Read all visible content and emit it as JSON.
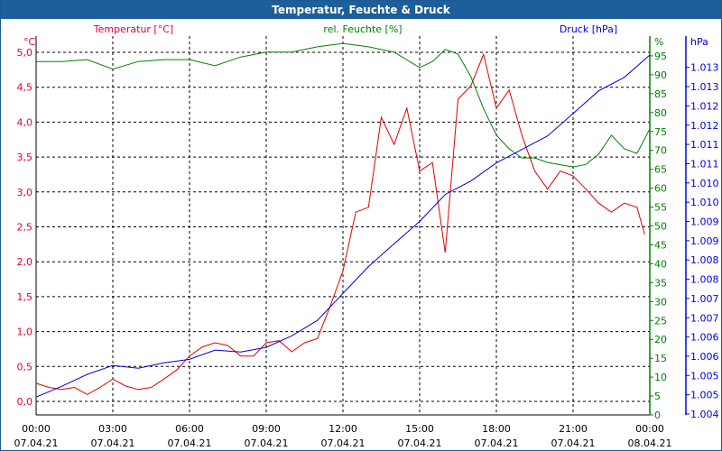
{
  "window": {
    "title": "Temperatur, Feuchte & Druck"
  },
  "chart_data": {
    "type": "line",
    "title": "Temperatur, Feuchte & Druck",
    "x_hours": [
      0,
      1,
      2,
      3,
      4,
      5,
      6,
      7,
      8,
      9,
      10,
      11,
      12,
      13,
      14,
      15,
      16,
      17,
      18,
      19,
      20,
      21,
      22,
      23,
      24
    ],
    "x_ticks": [
      {
        "h": 0,
        "time": "00:00",
        "date": "07.04.21"
      },
      {
        "h": 3,
        "time": "03:00",
        "date": "07.04.21"
      },
      {
        "h": 6,
        "time": "06:00",
        "date": "07.04.21"
      },
      {
        "h": 9,
        "time": "09:00",
        "date": "07.04.21"
      },
      {
        "h": 12,
        "time": "12:00",
        "date": "07.04.21"
      },
      {
        "h": 15,
        "time": "15:00",
        "date": "07.04.21"
      },
      {
        "h": 18,
        "time": "18:00",
        "date": "07.04.21"
      },
      {
        "h": 21,
        "time": "21:00",
        "date": "07.04.21"
      },
      {
        "h": 24,
        "time": "00:00",
        "date": "08.04.21"
      }
    ],
    "axes": {
      "temperature": {
        "label": "Temperatur [°C]",
        "unit": "°C",
        "color": "#e00030",
        "ylim": [
          -0.19,
          5.0
        ],
        "ticks": [
          "0,0",
          "0,5",
          "1,0",
          "1,5",
          "2,0",
          "2,5",
          "3,0",
          "3,5",
          "4,0",
          "4,5",
          "5,0"
        ],
        "tick_values": [
          0,
          0.5,
          1,
          1.5,
          2,
          2.5,
          3,
          3.5,
          4,
          4.5,
          5
        ]
      },
      "humidity": {
        "label": "rel. Feuchte [%]",
        "unit": "%",
        "color": "#008000",
        "ylim": [
          0,
          95
        ],
        "ticks": [
          "0",
          "5",
          "10",
          "15",
          "20",
          "25",
          "30",
          "35",
          "40",
          "45",
          "50",
          "55",
          "60",
          "65",
          "70",
          "75",
          "80",
          "85",
          "90",
          "95"
        ]
      },
      "pressure": {
        "label": "Druck [hPa]",
        "unit": "hPa",
        "color": "#0000e0",
        "ylim": [
          1.004,
          1.013
        ],
        "ticks": [
          "1.004",
          "1.005",
          "1.005",
          "1.006",
          "1.006",
          "1.007",
          "1.007",
          "1.008",
          "1.008",
          "1.009",
          "1.009",
          "1.010",
          "1.010",
          "1.011",
          "1.011",
          "1.012",
          "1.012",
          "1.013",
          "1.013"
        ]
      }
    },
    "series": [
      {
        "name": "Temperatur",
        "axis": "temperature",
        "color": "#e00000",
        "x": [
          0,
          0.5,
          1,
          1.5,
          2,
          2.5,
          3,
          3.5,
          4,
          4.5,
          5,
          5.5,
          6,
          6.5,
          7,
          7.5,
          8,
          8.5,
          9,
          9.5,
          10,
          10.5,
          11,
          11.5,
          12,
          12.5,
          13,
          13.5,
          14,
          14.5,
          15,
          15.5,
          16,
          16.5,
          17,
          17.5,
          18,
          18.5,
          19,
          19.5,
          20,
          20.5,
          21,
          21.5,
          22,
          22.5,
          23,
          23.5,
          23.8
        ],
        "values": [
          0.26,
          0.2,
          0.17,
          0.2,
          0.1,
          0.2,
          0.32,
          0.22,
          0.17,
          0.2,
          0.32,
          0.45,
          0.65,
          0.78,
          0.84,
          0.8,
          0.65,
          0.65,
          0.84,
          0.87,
          0.71,
          0.84,
          0.9,
          1.36,
          1.87,
          2.71,
          2.78,
          4.07,
          3.68,
          4.2,
          3.3,
          3.42,
          2.13,
          4.33,
          4.52,
          4.97,
          4.2,
          4.46,
          3.81,
          3.3,
          3.04,
          3.3,
          3.23,
          3.04,
          2.84,
          2.71,
          2.84,
          2.78,
          2.39
        ]
      },
      {
        "name": "rel. Feuchte",
        "axis": "humidity",
        "color": "#008000",
        "x": [
          0,
          1,
          2,
          3,
          4,
          5,
          6,
          7,
          8,
          9,
          10,
          11,
          12,
          13,
          14,
          15,
          15.5,
          16,
          16.5,
          17,
          17.5,
          18,
          18.5,
          19,
          19.5,
          20,
          21,
          21.5,
          22,
          22.5,
          23,
          23.5,
          24
        ],
        "values": [
          93.5,
          93.5,
          94,
          91.5,
          93.5,
          94,
          94,
          92.4,
          94.7,
          96,
          96,
          97.4,
          98.3,
          97.4,
          96,
          91.9,
          93.5,
          96.7,
          95.5,
          89.5,
          81,
          74,
          70.4,
          68,
          68,
          66.8,
          65.6,
          66.3,
          69,
          74,
          70.4,
          69.2,
          75.7
        ]
      },
      {
        "name": "Druck",
        "axis": "pressure",
        "color": "#0000e0",
        "x": [
          0,
          1,
          2,
          3,
          4,
          5,
          6,
          7,
          8,
          9,
          10,
          11,
          12,
          13,
          14,
          15,
          16,
          17,
          18,
          19,
          20,
          21,
          22,
          23,
          24
        ],
        "values": [
          1.00444,
          1.00472,
          1.00503,
          1.00526,
          1.00519,
          1.00533,
          1.00542,
          1.00566,
          1.00561,
          1.00573,
          1.00603,
          1.00643,
          1.00713,
          1.00783,
          1.00842,
          1.009,
          1.0097,
          1.01005,
          1.01052,
          1.01087,
          1.01122,
          1.0118,
          1.01239,
          1.01274,
          1.01332
        ]
      }
    ],
    "grid": true
  }
}
